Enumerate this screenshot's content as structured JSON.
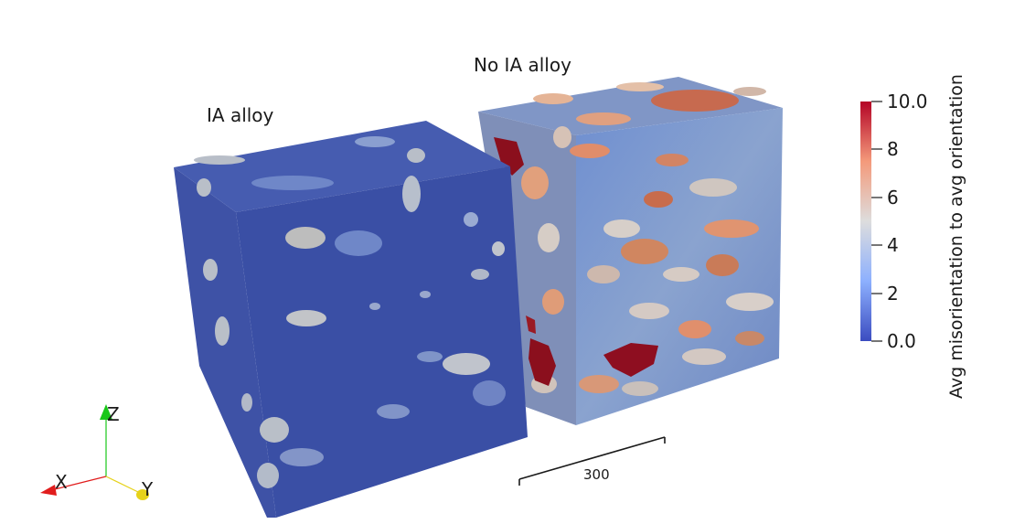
{
  "labels": {
    "ia_alloy": "IA alloy",
    "no_ia_alloy": "No IA alloy"
  },
  "colorbar": {
    "title": "Avg misorientation to avg orientation",
    "ticks": [
      "10.0",
      "8",
      "6",
      "4",
      "2",
      "0.0"
    ],
    "range": [
      0.0,
      10.0
    ],
    "colors": {
      "low": "#3b4cc0",
      "mid": "#dddddd",
      "high": "#b40426"
    }
  },
  "scale_bar": {
    "label": "300"
  },
  "axes": {
    "x": "X",
    "y": "Y",
    "z": "Z",
    "colors": {
      "x": "#e11d1d",
      "y": "#e6d21a",
      "z": "#19c719"
    }
  }
}
